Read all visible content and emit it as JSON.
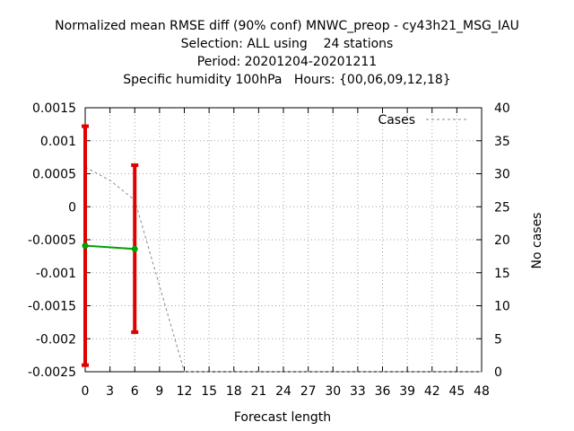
{
  "chart_data": {
    "type": "line",
    "title_lines": [
      "Normalized mean RMSE diff (90% conf) MNWC_preop - cy43h21_MSG_IAU",
      "Selection: ALL using    24 stations",
      "Period: 20201204-20201211",
      "Specific humidity 100hPa   Hours: {00,06,09,12,18}"
    ],
    "xlabel": "Forecast length",
    "ylabel": "",
    "y2label": "No cases",
    "xlim": [
      0,
      48
    ],
    "ylim": [
      -0.0025,
      0.0015
    ],
    "y2lim": [
      0,
      40
    ],
    "x_ticks": [
      0,
      3,
      6,
      9,
      12,
      15,
      18,
      21,
      24,
      27,
      30,
      33,
      36,
      39,
      42,
      45,
      48
    ],
    "x_tick_labels": [
      "0",
      "3",
      "6",
      "9",
      "12",
      "15",
      "18",
      "21",
      "24",
      "27",
      "30",
      "33",
      "36",
      "39",
      "42",
      "45",
      "48"
    ],
    "y_ticks": [
      0.0015,
      0.001,
      0.0005,
      0,
      -0.0005,
      -0.001,
      -0.0015,
      -0.002,
      -0.0025
    ],
    "y_tick_labels": [
      "0.0015",
      "0.001",
      "0.0005",
      "0",
      "-0.0005",
      "-0.001",
      "-0.0015",
      "-0.002",
      "-0.0025"
    ],
    "y2_ticks": [
      40,
      35,
      30,
      25,
      20,
      15,
      10,
      5,
      0
    ],
    "y2_tick_labels": [
      "40",
      "35",
      "30",
      "25",
      "20",
      "15",
      "10",
      "5",
      "0"
    ],
    "grid": true,
    "legend": {
      "position": "top-right",
      "entries": [
        "Cases"
      ]
    },
    "colors": {
      "diff": "#00a000",
      "errorbar": "#e00000",
      "cases": "#888888"
    },
    "series": [
      {
        "type": "line",
        "x": [
          0,
          6
        ],
        "y": [
          -0.00059,
          -0.00064
        ],
        "err_low": [
          -0.0024,
          -0.0019
        ],
        "err_high": [
          0.00122,
          0.00063
        ]
      },
      {
        "name": "Cases",
        "type": "line",
        "axis": "y2",
        "dashed": true,
        "x": [
          0,
          3,
          6,
          9,
          12,
          15,
          18,
          21,
          24,
          27,
          30,
          33,
          36,
          39,
          42,
          45,
          48
        ],
        "y": [
          31,
          29,
          26,
          13,
          0,
          0,
          0,
          0,
          0,
          0,
          0,
          0,
          0,
          0,
          0,
          0,
          0
        ]
      }
    ]
  }
}
